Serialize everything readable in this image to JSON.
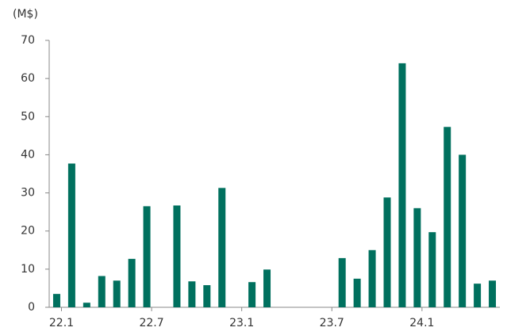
{
  "chart_data": {
    "type": "bar",
    "y_label": "(M$)",
    "categories": [
      "22.1",
      null,
      null,
      null,
      null,
      null,
      "22.7",
      null,
      null,
      null,
      null,
      null,
      "23.1",
      null,
      null,
      null,
      null,
      null,
      "23.7",
      null,
      null,
      null,
      null,
      null,
      "24.1",
      null,
      null,
      null,
      null,
      null
    ],
    "values": [
      3.5,
      37.7,
      1.2,
      8.2,
      7,
      12.7,
      26.5,
      0,
      26.7,
      6.8,
      5.8,
      31.3,
      0,
      6.6,
      9.9,
      0,
      0,
      0,
      0,
      12.9,
      7.5,
      15,
      28.8,
      64,
      26,
      19.7,
      47.3,
      40,
      6.2,
      7
    ],
    "color": "#00705e",
    "ylim": [
      0,
      70
    ],
    "yticks": [
      0,
      10,
      20,
      30,
      40,
      50,
      60,
      70
    ],
    "grid": false
  }
}
